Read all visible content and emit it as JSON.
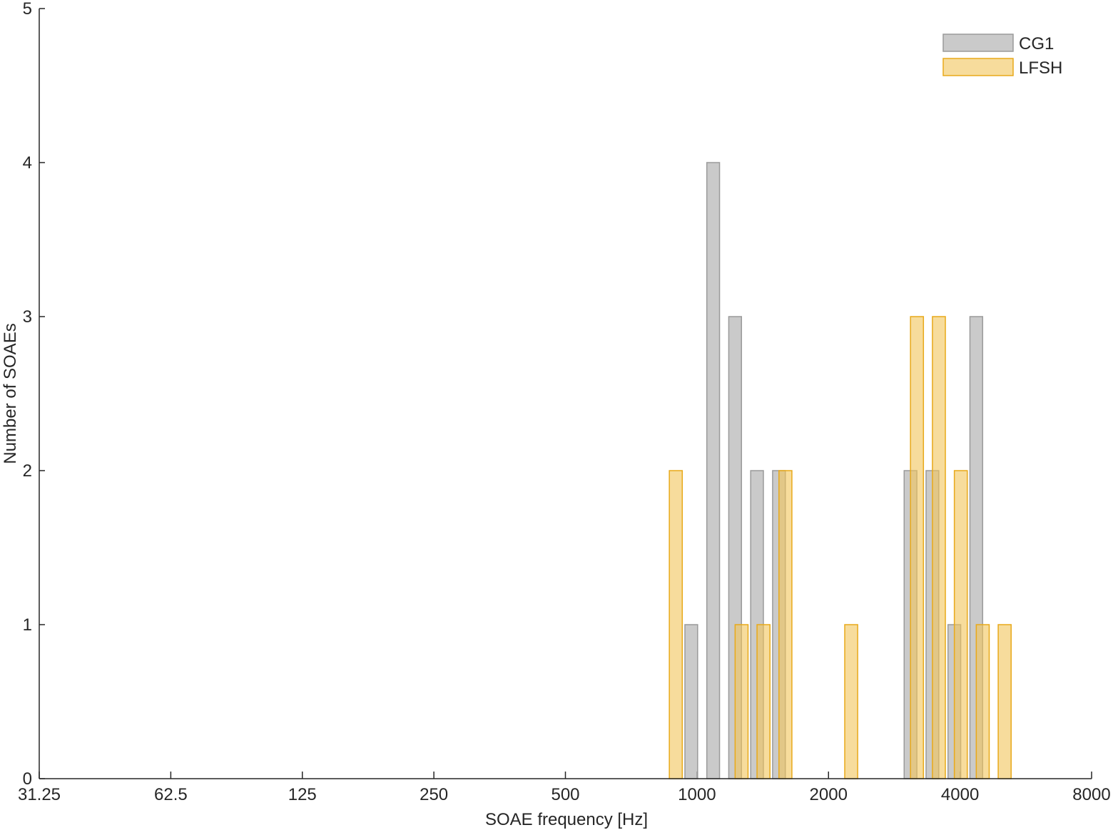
{
  "chart_data": {
    "type": "bar",
    "xlabel": "SOAE frequency [Hz]",
    "ylabel": "Number of SOAEs",
    "xscale": "log",
    "xlim": [
      31.25,
      8000
    ],
    "xticks": [
      31.25,
      62.5,
      125,
      250,
      500,
      1000,
      2000,
      4000,
      8000
    ],
    "ylim": [
      0,
      5
    ],
    "yticks": [
      0,
      1,
      2,
      3,
      4,
      5
    ],
    "grid": false,
    "legend": "upper right",
    "x": [
      44.19,
      49.61,
      55.68,
      62.5,
      70.15,
      78.75,
      88.39,
      99.21,
      111.36,
      125,
      140.31,
      157.49,
      176.78,
      198.43,
      222.72,
      250,
      280.62,
      314.98,
      353.55,
      396.85,
      445.45,
      500,
      561.23,
      629.96,
      707.11,
      793.7,
      890.9,
      1000,
      1122.46,
      1259.92,
      1414.21,
      1587.4,
      1781.8,
      2000,
      2244.92,
      2519.84,
      2828.43,
      3174.8,
      3563.59,
      4000,
      4489.85,
      5039.68,
      5656.85,
      6349.6,
      7127.19
    ],
    "series": [
      {
        "name": "CG1",
        "color": "#bdbdbd",
        "edgecolor": "#9a9a9a",
        "values": [
          0,
          0,
          0,
          0,
          0,
          0,
          0,
          0,
          0,
          0,
          0,
          0,
          0,
          0,
          0,
          0,
          0,
          0,
          0,
          0,
          0,
          0,
          0,
          0,
          0,
          0,
          0,
          1,
          4,
          3,
          2,
          2,
          0,
          0,
          0,
          0,
          0,
          2,
          2,
          1,
          3,
          0,
          0,
          0,
          0
        ]
      },
      {
        "name": "LFSH",
        "color": "#f2c45a",
        "edgecolor": "#e8a91a",
        "values": [
          0,
          0,
          0,
          0,
          0,
          0,
          0,
          0,
          0,
          0,
          0,
          0,
          0,
          0,
          0,
          0,
          0,
          0,
          0,
          0,
          0,
          0,
          0,
          0,
          0,
          0,
          2,
          0,
          0,
          1,
          1,
          2,
          0,
          0,
          1,
          0,
          0,
          3,
          3,
          2,
          1,
          1,
          0,
          0,
          0
        ]
      }
    ]
  }
}
